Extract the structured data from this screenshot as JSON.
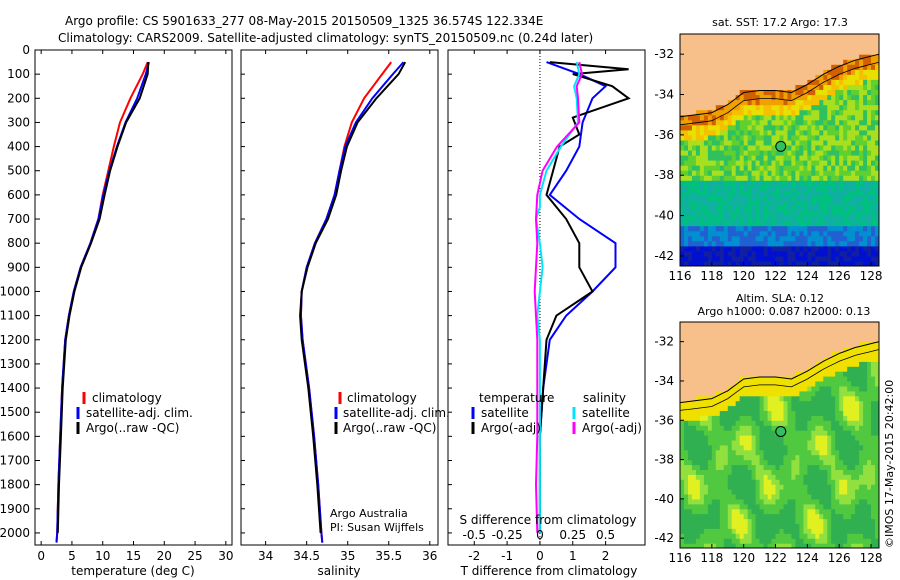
{
  "header": {
    "line1": "Argo profile: CS 5901633_277 08-May-2015 20150509_1325 36.574S 122.334E",
    "line2": "Climatology: CARS2009. Satellite-adjusted climatology: synTS_20150509.nc (0.24d later)"
  },
  "depth_ticks": [
    0,
    100,
    200,
    300,
    400,
    500,
    600,
    700,
    800,
    900,
    1000,
    1100,
    1200,
    1300,
    1400,
    1500,
    1600,
    1700,
    1800,
    1900,
    2000
  ],
  "colors": {
    "climatology": "#ff0000",
    "satellite": "#0000ff",
    "argo": "#000000",
    "sat_salinity": "#00e5ff",
    "argo_salinity": "#ff00ff",
    "land": "#f7c08a"
  },
  "chart_data": [
    {
      "type": "line",
      "id": "temperature",
      "xlabel": "temperature (deg C)",
      "xlim": [
        -1,
        31
      ],
      "ylim": [
        2050,
        0
      ],
      "xticks": [
        0,
        5,
        10,
        15,
        20,
        25,
        30
      ],
      "legend": [
        "climatology",
        "satellite-adj. clim.",
        "Argo(..raw -QC)"
      ],
      "series": [
        {
          "name": "climatology",
          "depth": [
            50,
            100,
            200,
            300,
            400,
            500,
            600,
            700,
            800,
            900,
            1000,
            1100,
            1200,
            1400,
            1600,
            1800,
            2000,
            2040
          ],
          "values": [
            17.3,
            16.5,
            14.5,
            12.8,
            11.8,
            10.9,
            10.0,
            9.3,
            8.0,
            6.4,
            5.3,
            4.5,
            3.9,
            3.4,
            3.1,
            2.8,
            2.6,
            2.5
          ]
        },
        {
          "name": "satellite-adj. clim.",
          "depth": [
            50,
            100,
            200,
            300,
            400,
            500,
            600,
            700,
            800,
            900,
            1000,
            1100,
            1200,
            1400,
            1600,
            1800,
            2000,
            2040
          ],
          "values": [
            17.5,
            17.0,
            15.6,
            13.7,
            12.3,
            11.1,
            10.1,
            9.3,
            8.0,
            6.4,
            5.3,
            4.5,
            3.9,
            3.4,
            3.1,
            2.8,
            2.6,
            2.5
          ]
        },
        {
          "name": "Argo(..raw -QC)",
          "depth": [
            50,
            100,
            200,
            300,
            400,
            500,
            600,
            700,
            800,
            900,
            1000,
            1100,
            1200,
            1400,
            1600,
            1800,
            2000
          ],
          "values": [
            17.4,
            17.3,
            16.0,
            13.8,
            12.4,
            11.2,
            10.3,
            9.5,
            8.1,
            6.5,
            5.4,
            4.6,
            4.0,
            3.5,
            3.2,
            2.9,
            2.7
          ]
        }
      ]
    },
    {
      "type": "line",
      "id": "salinity",
      "xlabel": "salinity",
      "xlim": [
        33.7,
        36.1
      ],
      "ylim": [
        2050,
        0
      ],
      "xticks": [
        34,
        34.5,
        35,
        35.5,
        36
      ],
      "legend": [
        "climatology",
        "satellite-adj. clim.",
        "Argo(..raw -QC)"
      ],
      "annotation": [
        "Argo Australia",
        "PI: Susan Wijffels"
      ],
      "series": [
        {
          "name": "climatology",
          "depth": [
            50,
            100,
            200,
            300,
            400,
            500,
            600,
            700,
            800,
            900,
            1000,
            1100,
            1200,
            1400,
            1600,
            1800,
            2000,
            2040
          ],
          "values": [
            35.53,
            35.42,
            35.2,
            35.05,
            34.96,
            34.9,
            34.84,
            34.74,
            34.6,
            34.5,
            34.44,
            34.43,
            34.45,
            34.53,
            34.59,
            34.64,
            34.68,
            34.69
          ]
        },
        {
          "name": "satellite-adj. clim.",
          "depth": [
            50,
            100,
            200,
            300,
            400,
            500,
            600,
            700,
            800,
            900,
            1000,
            1100,
            1200,
            1400,
            1600,
            1800,
            2000,
            2040
          ],
          "values": [
            35.68,
            35.55,
            35.3,
            35.1,
            34.97,
            34.9,
            34.84,
            34.74,
            34.6,
            34.5,
            34.44,
            34.43,
            34.45,
            34.53,
            34.59,
            34.64,
            34.68,
            34.69
          ]
        },
        {
          "name": "Argo(..raw -QC)",
          "depth": [
            50,
            100,
            200,
            300,
            400,
            500,
            600,
            700,
            800,
            900,
            1000,
            1100,
            1200,
            1400,
            1600,
            1800,
            2000
          ],
          "values": [
            35.7,
            35.62,
            35.35,
            35.12,
            34.99,
            34.92,
            34.86,
            34.76,
            34.61,
            34.51,
            34.44,
            34.42,
            34.44,
            34.52,
            34.58,
            34.63,
            34.67
          ]
        }
      ]
    },
    {
      "type": "line",
      "id": "difference",
      "xlabel": "T difference from climatology",
      "xlabel2": "S difference from climatology",
      "xlim": [
        -2.8,
        3.2
      ],
      "ylim": [
        2050,
        0
      ],
      "xticks": [
        -2,
        -1,
        0,
        1,
        2
      ],
      "xticks2": [
        "-0.5",
        "-0.25",
        "0",
        "0.25",
        "0.5"
      ],
      "legend_titles": [
        "temperature",
        "salinity"
      ],
      "legend": [
        "satellite",
        "Argo(-adj)",
        "satellite",
        "Argo(-adj)"
      ],
      "series": [
        {
          "name": "satellite",
          "depth": [
            50,
            100,
            150,
            200,
            300,
            400,
            500,
            600,
            700,
            800,
            900,
            1000,
            1100,
            1200,
            1400,
            1600,
            1800,
            2000
          ],
          "values": [
            0.2,
            1.2,
            2.0,
            1.6,
            1.3,
            1.2,
            0.8,
            0.3,
            1.2,
            2.3,
            2.3,
            1.6,
            0.8,
            0.3,
            0.1,
            0.0,
            0.0,
            0.0
          ]
        },
        {
          "name": "Argo(-adj)",
          "depth": [
            50,
            80,
            100,
            150,
            200,
            280,
            350,
            400,
            500,
            600,
            700,
            800,
            900,
            1000,
            1100,
            1200,
            1400,
            1600,
            1800,
            2000
          ],
          "values": [
            0.3,
            2.7,
            1.0,
            2.2,
            2.7,
            1.0,
            1.2,
            0.6,
            0.4,
            0.2,
            0.8,
            1.2,
            1.2,
            1.6,
            0.5,
            0.2,
            0.1,
            0.0,
            0.0,
            0.0
          ]
        },
        {
          "name": "satellite",
          "depth": [
            50,
            100,
            150,
            200,
            300,
            400,
            500,
            600,
            650,
            700,
            800,
            900,
            1000,
            1100,
            1200,
            1400,
            1600,
            1800,
            2000
          ],
          "values": [
            0.28,
            0.3,
            0.26,
            0.28,
            0.29,
            0.16,
            0.05,
            0.0,
            0.0,
            -0.03,
            0.0,
            0.02,
            0.0,
            -0.02,
            0.0,
            0.0,
            0.0,
            0.0,
            0.0
          ]
        },
        {
          "name": "Argo(-adj)",
          "depth": [
            50,
            100,
            150,
            200,
            300,
            400,
            500,
            600,
            700,
            800,
            900,
            1000,
            1100,
            1200,
            1400,
            1600,
            1800,
            2000
          ],
          "values": [
            0.3,
            0.32,
            0.28,
            0.29,
            0.3,
            0.13,
            0.02,
            -0.02,
            -0.03,
            -0.02,
            -0.03,
            -0.04,
            -0.03,
            -0.02,
            -0.02,
            -0.02,
            -0.03,
            -0.02
          ]
        }
      ]
    },
    {
      "type": "heatmap",
      "id": "sst_map",
      "title": "sat. SST: 17.2 Argo: 17.3",
      "xticks": [
        116,
        118,
        120,
        122,
        124,
        126,
        128
      ],
      "yticks": [
        -32,
        -34,
        -36,
        -38,
        -40,
        -42
      ],
      "xlim": [
        116,
        128.5
      ],
      "ylim": [
        -42.5,
        -31
      ],
      "marker": {
        "lon": 122.33,
        "lat": -36.57
      }
    },
    {
      "type": "heatmap",
      "id": "sla_map",
      "title": "Altim. SLA: 0.12",
      "subtitle": "Argo h1000: 0.087 h2000: 0.13",
      "xticks": [
        116,
        118,
        120,
        122,
        124,
        126,
        128
      ],
      "yticks": [
        -32,
        -34,
        -36,
        -38,
        -40,
        -42
      ],
      "xlim": [
        116,
        128.5
      ],
      "ylim": [
        -42.5,
        -31
      ],
      "marker": {
        "lon": 122.33,
        "lat": -36.57
      }
    }
  ],
  "footer_stamp": "©IMOS 17-May-2015 20:42:00"
}
